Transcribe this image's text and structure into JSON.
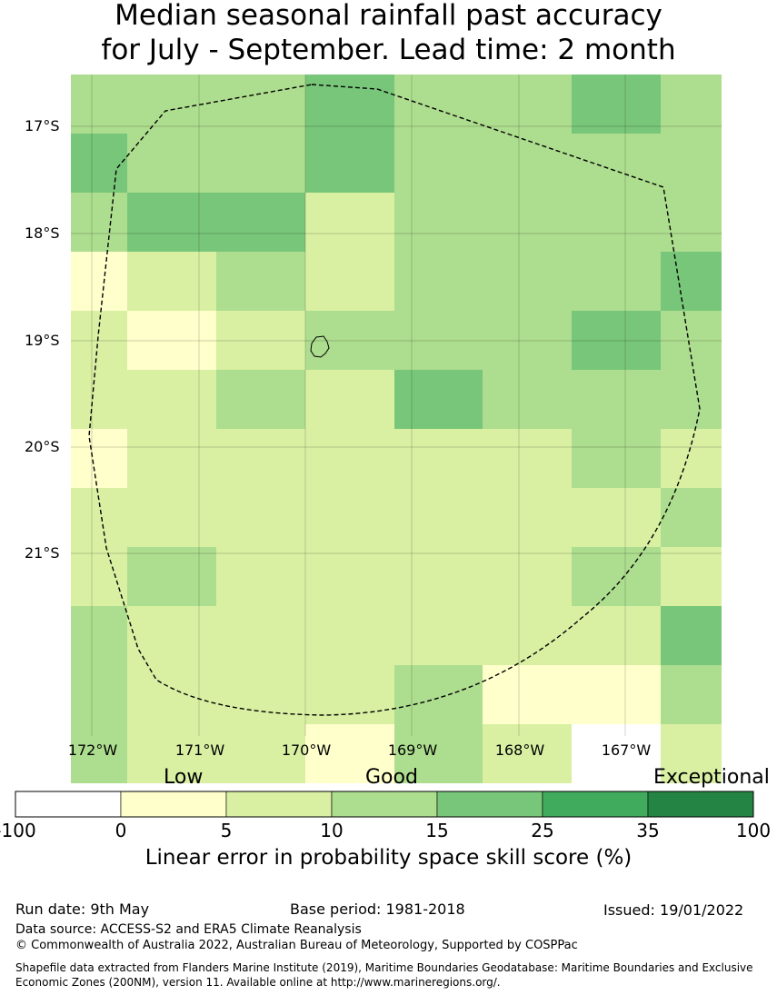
{
  "title": {
    "line1": "Median seasonal rainfall past accuracy",
    "line2": "for July - September. Lead time: 2 month"
  },
  "map": {
    "lat_labels": [
      "17°S",
      "18°S",
      "19°S",
      "20°S",
      "21°S"
    ],
    "lon_labels": [
      "172°W",
      "171°W",
      "170°W",
      "169°W",
      "168°W",
      "167°W"
    ],
    "cells": [
      [
        10,
        10,
        10,
        15,
        10,
        10,
        15,
        10
      ],
      [
        15,
        10,
        10,
        15,
        10,
        10,
        10,
        10
      ],
      [
        10,
        15,
        15,
        5,
        10,
        10,
        10,
        10
      ],
      [
        0,
        5,
        10,
        5,
        10,
        10,
        10,
        15
      ],
      [
        5,
        0,
        5,
        10,
        10,
        10,
        15,
        10
      ],
      [
        5,
        5,
        10,
        5,
        15,
        10,
        10,
        10
      ],
      [
        0,
        5,
        5,
        5,
        5,
        5,
        10,
        5
      ],
      [
        5,
        5,
        5,
        5,
        5,
        5,
        5,
        10
      ],
      [
        5,
        10,
        5,
        5,
        5,
        5,
        10,
        5
      ],
      [
        10,
        5,
        5,
        5,
        5,
        5,
        5,
        15
      ],
      [
        10,
        5,
        5,
        5,
        10,
        0,
        0,
        10
      ],
      [
        10,
        5,
        5,
        0,
        10,
        5,
        -100,
        5
      ]
    ]
  },
  "legend": {
    "categories": [
      "Low",
      "Good",
      "Exceptional"
    ],
    "ticks": [
      "-100",
      "0",
      "5",
      "10",
      "15",
      "25",
      "35",
      "100"
    ],
    "colors": [
      "#ffffff",
      "#ffffcc",
      "#d9f0a3",
      "#addd8e",
      "#78c679",
      "#41ab5d",
      "#238443"
    ],
    "label": "Linear error in probability space skill score (%)"
  },
  "footer": {
    "run_date": "Run date: 9th May",
    "base_period": "Base period: 1981-2018",
    "issued": "Issued: 19/01/2022",
    "data_source": "Data source: ACCESS-S2 and ERA5 Climate Reanalysis",
    "copyright": "© Commonwealth of Australia 2022, Australian Bureau of Meteorology, Supported by COSPPac",
    "shapefile": "Shapefile data extracted from Flanders Marine Institute (2019), Maritime Boundaries Geodatabase: Maritime Boundaries and Exclusive Economic Zones (200NM), version 11. Available online at http://www.marineregions.org/."
  }
}
